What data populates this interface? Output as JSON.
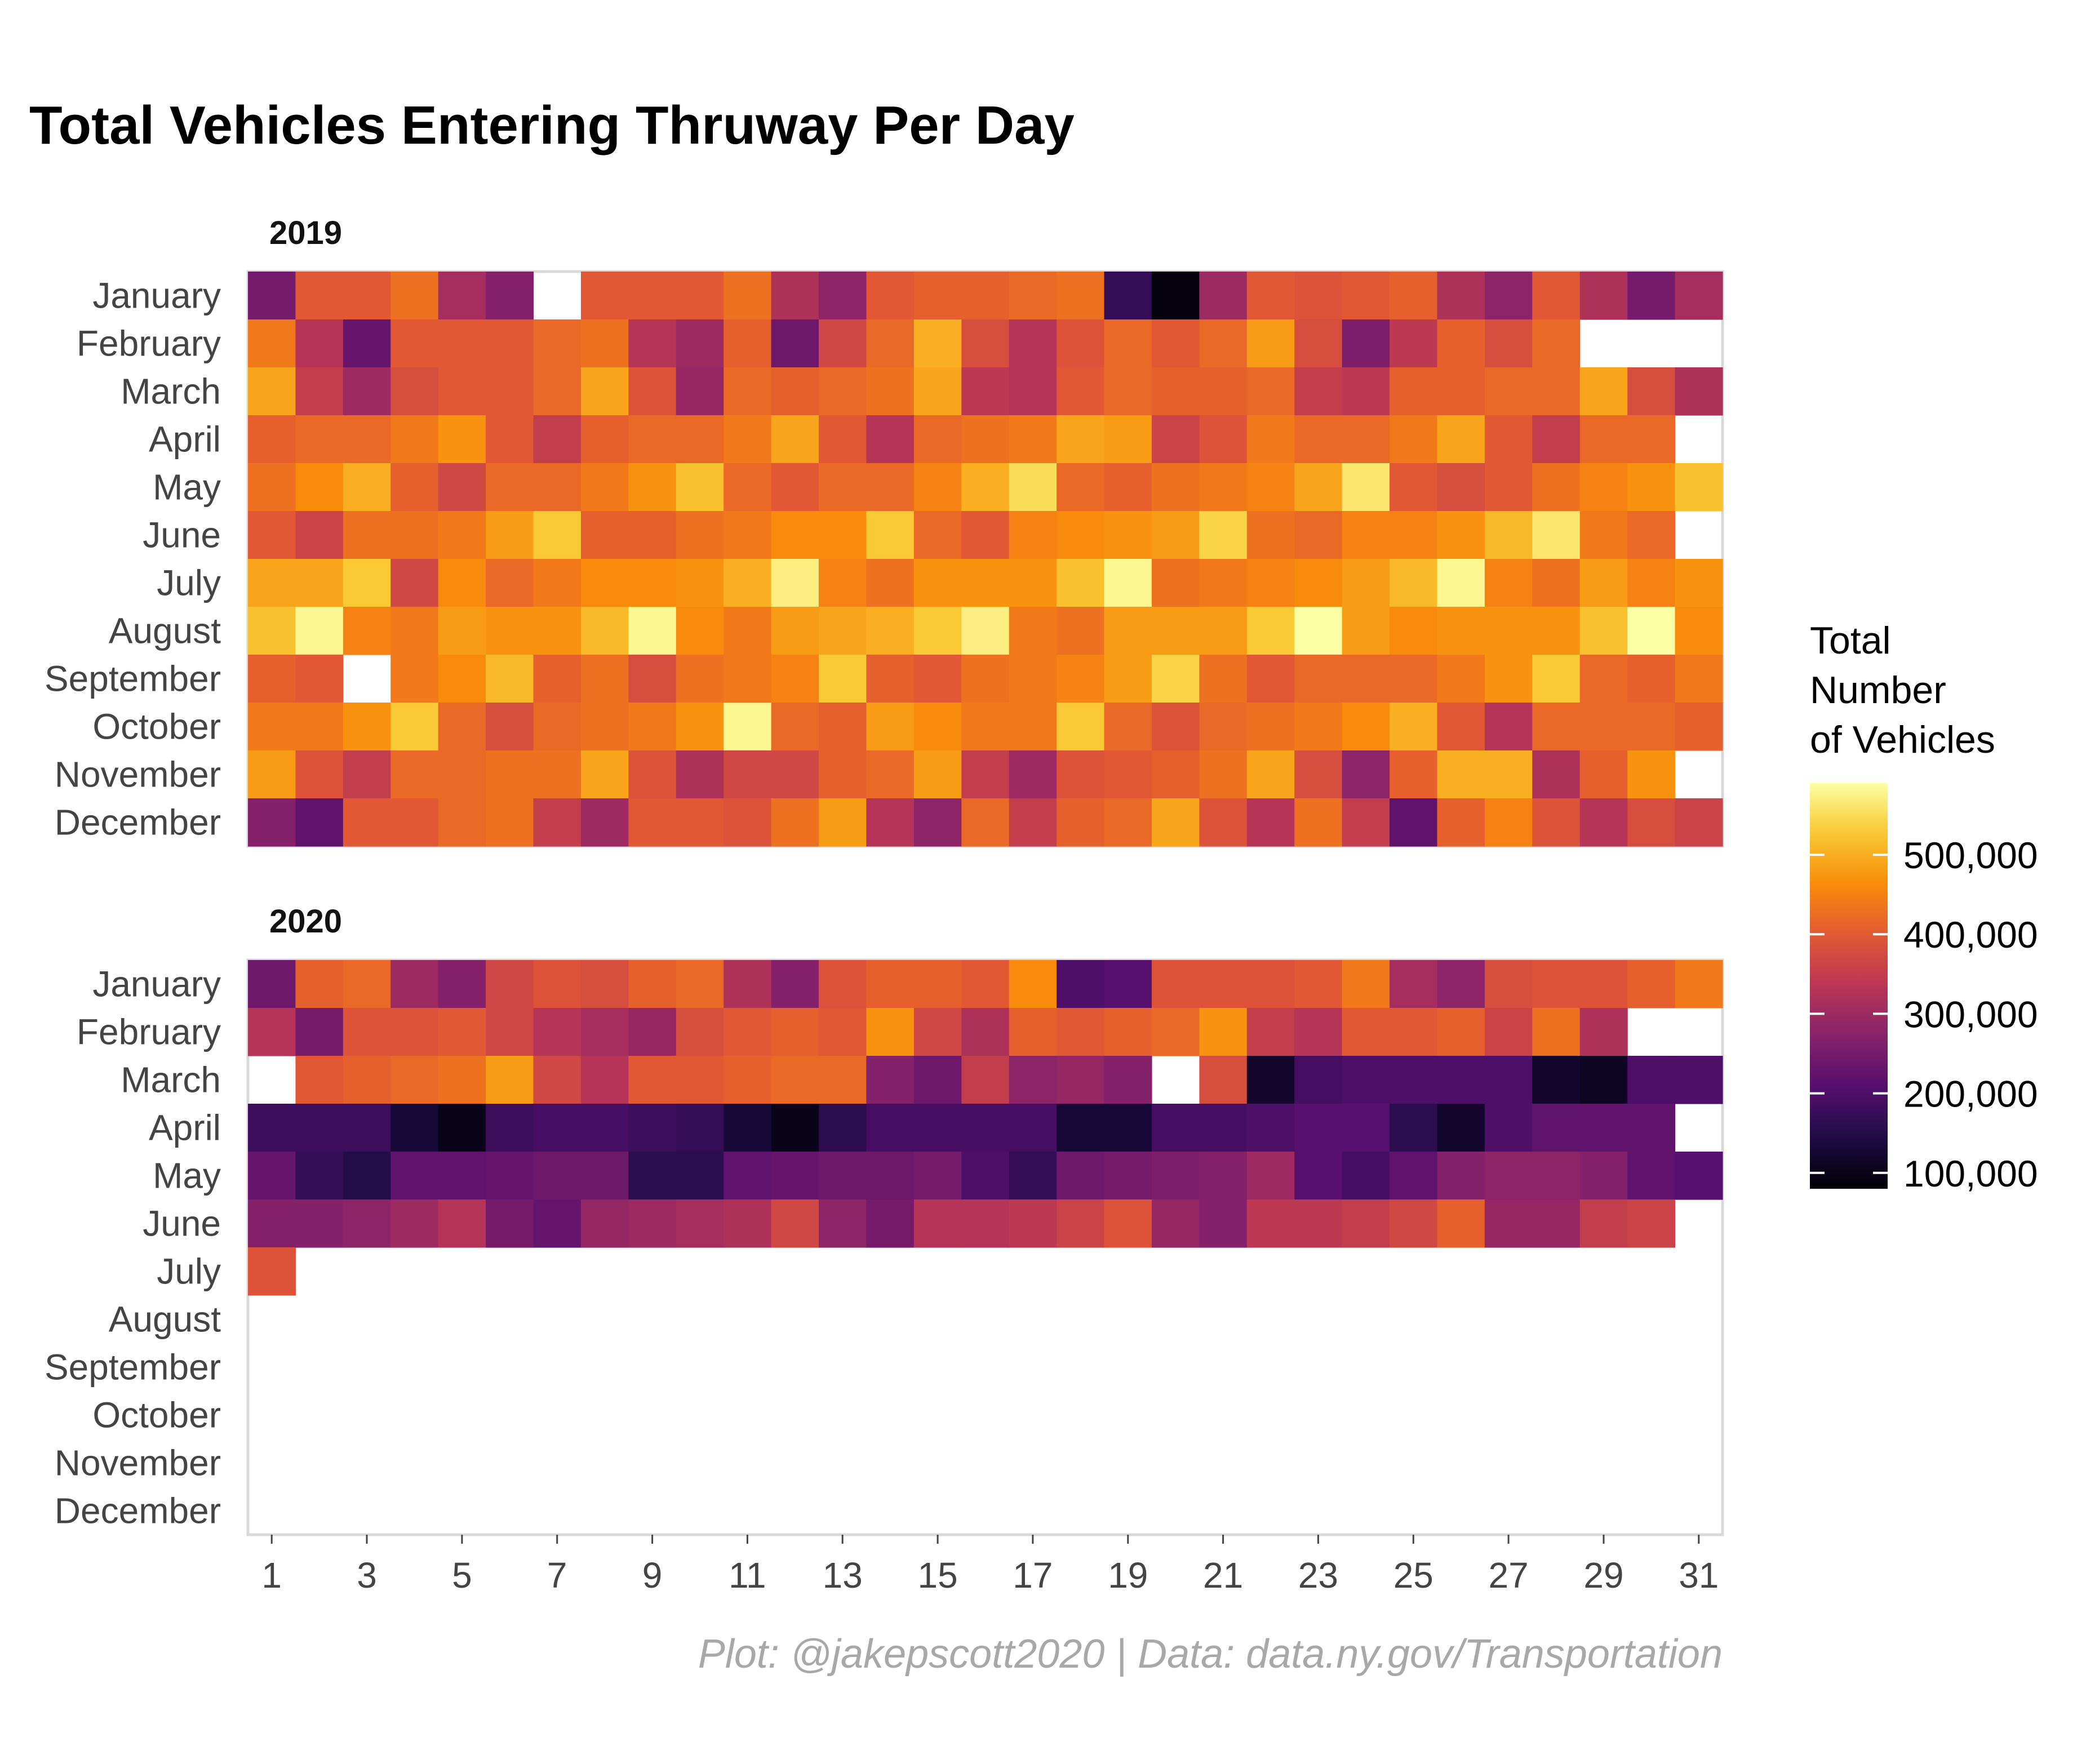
{
  "chart_data": {
    "type": "heatmap",
    "title": "Total Vehicles Entering Thruway Per Day",
    "caption": "Plot: @jakepscott2020 | Data: data.ny.gov/Transportation",
    "months": [
      "January",
      "February",
      "March",
      "April",
      "May",
      "June",
      "July",
      "August",
      "September",
      "October",
      "November",
      "December"
    ],
    "x_ticks": [
      1,
      3,
      5,
      7,
      9,
      11,
      13,
      15,
      17,
      19,
      21,
      23,
      25,
      27,
      29,
      31
    ],
    "x_range": [
      1,
      31
    ],
    "legend": {
      "title_lines": [
        "Total",
        "Number",
        "of Vehicles"
      ],
      "ticks": [
        100000,
        200000,
        300000,
        400000,
        500000
      ],
      "tick_labels": [
        "100,000",
        "200,000",
        "300,000",
        "400,000",
        "500,000"
      ],
      "min": 80000,
      "max": 590000,
      "placement": "right",
      "colormap": "inferno"
    },
    "panels": [
      {
        "year_label": "2019",
        "rows": [
          [
            250000,
            400000,
            400000,
            430000,
            310000,
            270000,
            null,
            400000,
            400000,
            400000,
            430000,
            320000,
            280000,
            400000,
            410000,
            410000,
            420000,
            430000,
            170000,
            90000,
            300000,
            400000,
            390000,
            400000,
            410000,
            320000,
            280000,
            400000,
            320000,
            250000,
            310000
          ],
          [
            440000,
            330000,
            230000,
            400000,
            400000,
            400000,
            420000,
            430000,
            330000,
            300000,
            410000,
            240000,
            370000,
            420000,
            500000,
            380000,
            330000,
            390000,
            420000,
            400000,
            420000,
            480000,
            380000,
            260000,
            340000,
            410000,
            380000,
            420000,
            null,
            null,
            null
          ],
          [
            490000,
            350000,
            300000,
            380000,
            400000,
            400000,
            420000,
            490000,
            390000,
            290000,
            420000,
            410000,
            420000,
            430000,
            490000,
            340000,
            330000,
            400000,
            420000,
            410000,
            410000,
            420000,
            350000,
            340000,
            410000,
            410000,
            420000,
            420000,
            490000,
            380000,
            320000
          ],
          [
            410000,
            420000,
            420000,
            440000,
            470000,
            400000,
            350000,
            410000,
            420000,
            420000,
            440000,
            490000,
            400000,
            330000,
            420000,
            430000,
            440000,
            490000,
            480000,
            360000,
            390000,
            440000,
            420000,
            420000,
            440000,
            490000,
            400000,
            350000,
            420000,
            420000,
            null
          ],
          [
            430000,
            460000,
            500000,
            410000,
            370000,
            420000,
            420000,
            440000,
            470000,
            520000,
            420000,
            400000,
            420000,
            420000,
            450000,
            500000,
            550000,
            420000,
            410000,
            430000,
            440000,
            450000,
            490000,
            560000,
            400000,
            380000,
            400000,
            430000,
            450000,
            470000,
            520000
          ],
          [
            400000,
            360000,
            430000,
            430000,
            440000,
            480000,
            530000,
            410000,
            410000,
            430000,
            440000,
            460000,
            460000,
            530000,
            420000,
            400000,
            450000,
            460000,
            470000,
            480000,
            540000,
            430000,
            420000,
            450000,
            450000,
            470000,
            510000,
            560000,
            440000,
            420000,
            null
          ],
          [
            490000,
            490000,
            530000,
            370000,
            460000,
            420000,
            440000,
            460000,
            460000,
            470000,
            500000,
            570000,
            450000,
            430000,
            470000,
            470000,
            470000,
            520000,
            580000,
            430000,
            440000,
            450000,
            460000,
            480000,
            510000,
            580000,
            450000,
            430000,
            480000,
            450000,
            470000
          ],
          [
            520000,
            580000,
            450000,
            440000,
            480000,
            470000,
            470000,
            510000,
            580000,
            460000,
            440000,
            480000,
            490000,
            500000,
            530000,
            570000,
            440000,
            430000,
            480000,
            480000,
            480000,
            530000,
            590000,
            480000,
            460000,
            470000,
            470000,
            470000,
            520000,
            590000,
            460000
          ],
          [
            410000,
            400000,
            null,
            440000,
            460000,
            510000,
            410000,
            430000,
            380000,
            430000,
            440000,
            450000,
            530000,
            410000,
            400000,
            430000,
            440000,
            450000,
            480000,
            540000,
            430000,
            400000,
            420000,
            420000,
            420000,
            440000,
            470000,
            530000,
            420000,
            410000,
            440000
          ],
          [
            440000,
            440000,
            470000,
            530000,
            420000,
            380000,
            420000,
            430000,
            440000,
            470000,
            580000,
            420000,
            410000,
            480000,
            460000,
            440000,
            440000,
            530000,
            420000,
            390000,
            420000,
            430000,
            440000,
            460000,
            500000,
            400000,
            330000,
            420000,
            420000,
            420000,
            410000
          ],
          [
            480000,
            390000,
            350000,
            420000,
            420000,
            430000,
            430000,
            490000,
            390000,
            320000,
            370000,
            370000,
            410000,
            420000,
            480000,
            350000,
            300000,
            390000,
            400000,
            410000,
            430000,
            490000,
            380000,
            280000,
            410000,
            500000,
            500000,
            320000,
            410000,
            470000,
            null
          ],
          [
            270000,
            220000,
            400000,
            400000,
            420000,
            430000,
            350000,
            300000,
            400000,
            400000,
            390000,
            430000,
            480000,
            330000,
            280000,
            420000,
            350000,
            410000,
            420000,
            490000,
            390000,
            330000,
            430000,
            350000,
            220000,
            410000,
            450000,
            390000,
            330000,
            380000,
            360000
          ]
        ]
      },
      {
        "year_label": "2020",
        "rows": [
          [
            240000,
            410000,
            420000,
            300000,
            270000,
            370000,
            390000,
            380000,
            410000,
            420000,
            320000,
            270000,
            390000,
            410000,
            410000,
            400000,
            460000,
            200000,
            210000,
            390000,
            390000,
            390000,
            400000,
            440000,
            310000,
            280000,
            380000,
            390000,
            390000,
            410000,
            440000
          ],
          [
            330000,
            250000,
            390000,
            390000,
            400000,
            370000,
            330000,
            310000,
            290000,
            380000,
            400000,
            410000,
            400000,
            470000,
            370000,
            320000,
            410000,
            400000,
            410000,
            420000,
            470000,
            350000,
            330000,
            400000,
            400000,
            410000,
            360000,
            430000,
            320000,
            null,
            null
          ],
          [
            null,
            400000,
            410000,
            420000,
            430000,
            480000,
            370000,
            330000,
            400000,
            400000,
            410000,
            420000,
            420000,
            270000,
            240000,
            350000,
            280000,
            290000,
            270000,
            null,
            380000,
            120000,
            190000,
            200000,
            200000,
            200000,
            200000,
            120000,
            110000,
            200000,
            200000
          ],
          [
            180000,
            180000,
            180000,
            130000,
            100000,
            180000,
            190000,
            190000,
            180000,
            170000,
            130000,
            100000,
            160000,
            190000,
            190000,
            190000,
            190000,
            130000,
            130000,
            190000,
            190000,
            200000,
            210000,
            210000,
            160000,
            120000,
            200000,
            220000,
            220000,
            220000,
            null
          ],
          [
            230000,
            170000,
            150000,
            220000,
            220000,
            230000,
            240000,
            240000,
            160000,
            160000,
            220000,
            230000,
            240000,
            240000,
            250000,
            200000,
            170000,
            240000,
            250000,
            260000,
            270000,
            300000,
            210000,
            190000,
            220000,
            270000,
            280000,
            280000,
            270000,
            220000,
            210000
          ],
          [
            270000,
            270000,
            280000,
            300000,
            330000,
            250000,
            230000,
            290000,
            300000,
            310000,
            320000,
            370000,
            280000,
            250000,
            330000,
            330000,
            340000,
            360000,
            390000,
            290000,
            270000,
            340000,
            340000,
            350000,
            370000,
            410000,
            290000,
            290000,
            350000,
            360000,
            null
          ],
          [
            390000,
            null,
            null,
            null,
            null,
            null,
            null,
            null,
            null,
            null,
            null,
            null,
            null,
            null,
            null,
            null,
            null,
            null,
            null,
            null,
            null,
            null,
            null,
            null,
            null,
            null,
            null,
            null,
            null,
            null,
            null
          ],
          [
            null,
            null,
            null,
            null,
            null,
            null,
            null,
            null,
            null,
            null,
            null,
            null,
            null,
            null,
            null,
            null,
            null,
            null,
            null,
            null,
            null,
            null,
            null,
            null,
            null,
            null,
            null,
            null,
            null,
            null,
            null
          ],
          [
            null,
            null,
            null,
            null,
            null,
            null,
            null,
            null,
            null,
            null,
            null,
            null,
            null,
            null,
            null,
            null,
            null,
            null,
            null,
            null,
            null,
            null,
            null,
            null,
            null,
            null,
            null,
            null,
            null,
            null,
            null
          ],
          [
            null,
            null,
            null,
            null,
            null,
            null,
            null,
            null,
            null,
            null,
            null,
            null,
            null,
            null,
            null,
            null,
            null,
            null,
            null,
            null,
            null,
            null,
            null,
            null,
            null,
            null,
            null,
            null,
            null,
            null,
            null
          ],
          [
            null,
            null,
            null,
            null,
            null,
            null,
            null,
            null,
            null,
            null,
            null,
            null,
            null,
            null,
            null,
            null,
            null,
            null,
            null,
            null,
            null,
            null,
            null,
            null,
            null,
            null,
            null,
            null,
            null,
            null,
            null
          ],
          [
            null,
            null,
            null,
            null,
            null,
            null,
            null,
            null,
            null,
            null,
            null,
            null,
            null,
            null,
            null,
            null,
            null,
            null,
            null,
            null,
            null,
            null,
            null,
            null,
            null,
            null,
            null,
            null,
            null,
            null,
            null
          ]
        ]
      }
    ]
  }
}
